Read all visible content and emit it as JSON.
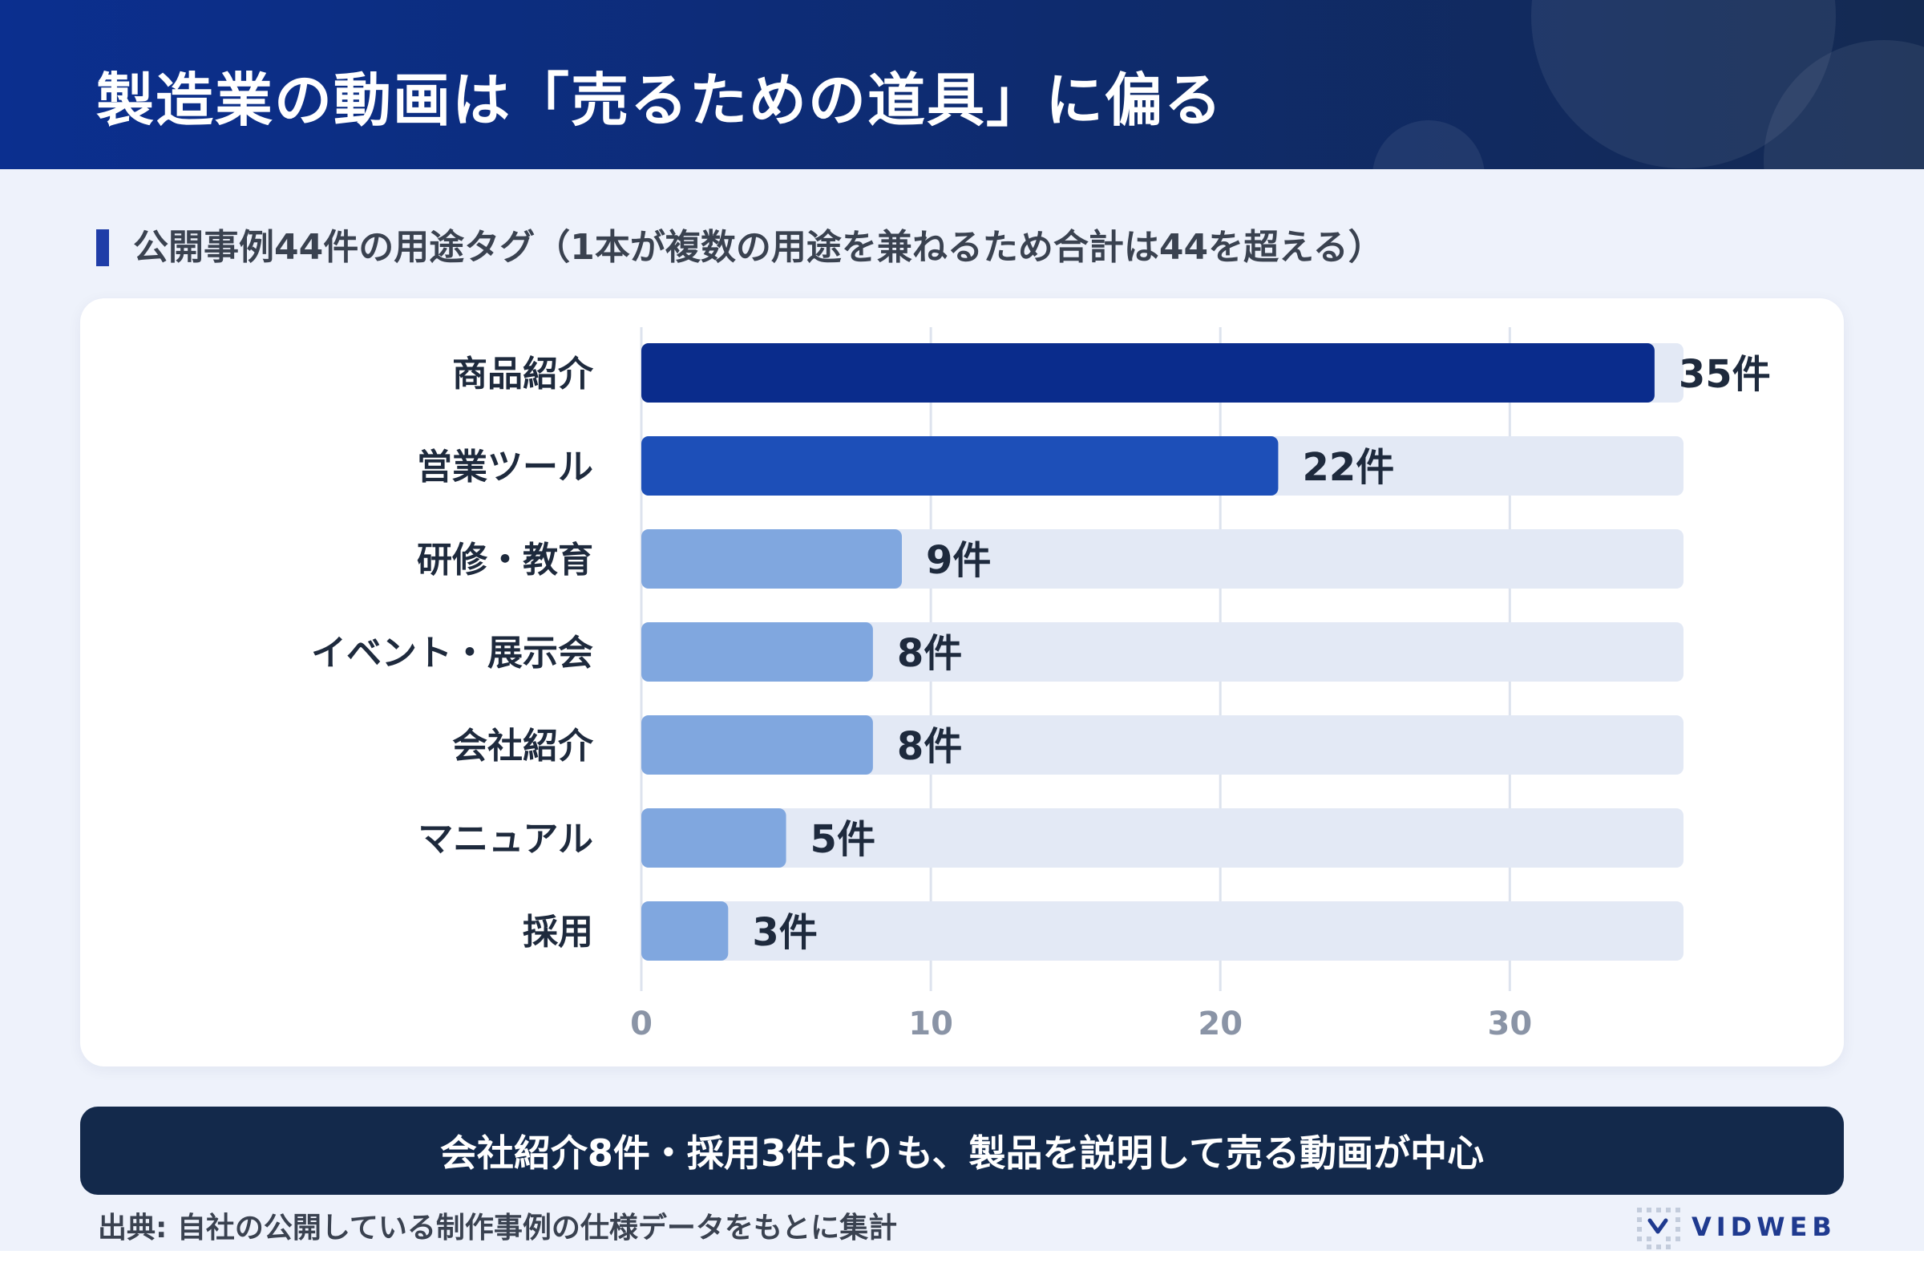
{
  "header": {
    "title": "製造業の動画は「売るための道具」に偏る"
  },
  "subtitle": "公開事例44件の用途タグ（1本が複数の用途を兼ねるため合計は44を超える）",
  "summary": "会社紹介8件・採用3件よりも、製品を説明して売る動画が中心",
  "footer": {
    "source": "出典: 自社の公開している制作事例の仕様データをもとに集計",
    "brand": "VIDWEB"
  },
  "colors": {
    "header_bg": "#0b2f8f",
    "bar_top1": "#0a2c8c",
    "bar_top2": "#1d4fb8",
    "bar_other": "#80a7df",
    "bar_track": "#e3e9f5",
    "summary_bg": "#13294b"
  },
  "chart_data": {
    "type": "bar",
    "orientation": "horizontal",
    "categories": [
      "商品紹介",
      "営業ツール",
      "研修・教育",
      "イベント・展示会",
      "会社紹介",
      "マニュアル",
      "採用"
    ],
    "values": [
      35,
      22,
      9,
      8,
      8,
      5,
      3
    ],
    "data_labels": [
      "35件",
      "22件",
      "9件",
      "8件",
      "8件",
      "5件",
      "3件"
    ],
    "xlim": [
      0,
      36
    ],
    "xticks": [
      0,
      10,
      20,
      30
    ],
    "xlabel": "",
    "ylabel": "",
    "grid": true
  }
}
